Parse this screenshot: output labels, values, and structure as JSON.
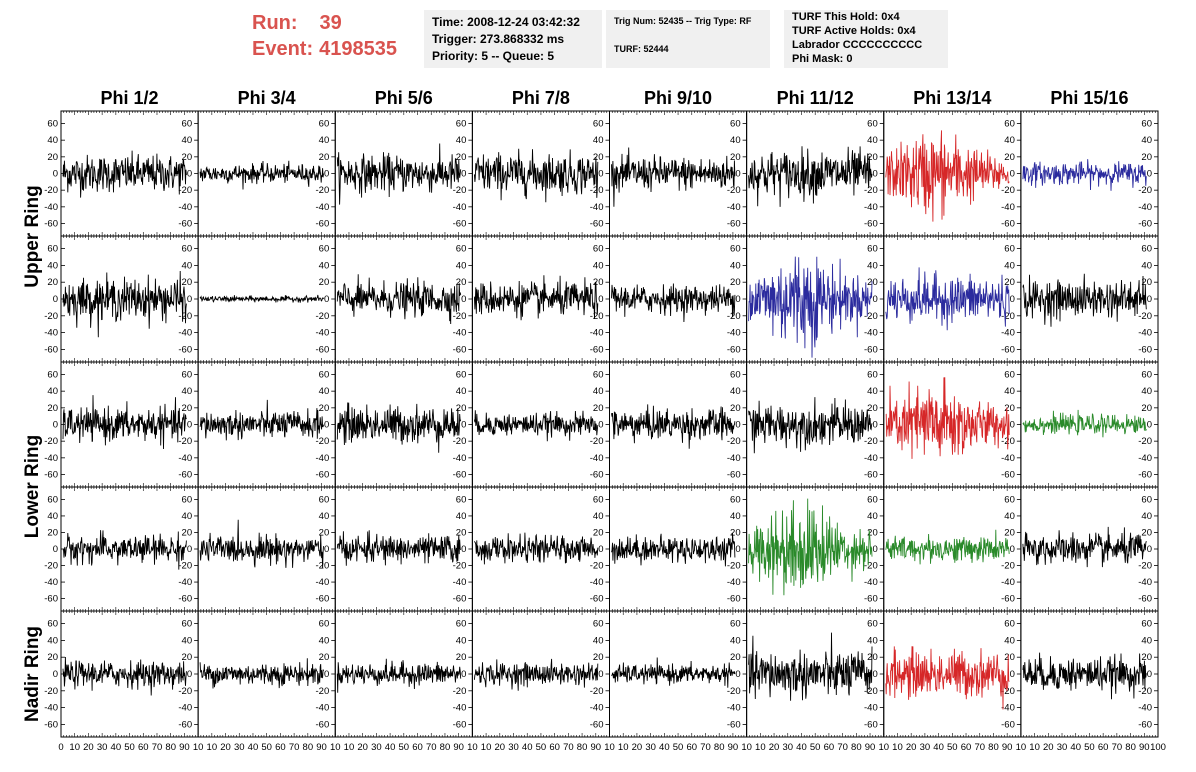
{
  "header": {
    "run_label": "Run:",
    "run_value": "39",
    "event_label": "Event:",
    "event_value": "4198535"
  },
  "info_panel": {
    "time": "Time: 2008-12-24 03:42:32",
    "trigger": "Trigger: 273.868332 ms",
    "priority": "Priority: 5 -- Queue: 5"
  },
  "trig_panel": {
    "trig": "Trig Num: 52435 -- Trig Type: RF",
    "turf": "TURF: 52444"
  },
  "turf_panel": {
    "this_hold": "TURF This Hold: 0x4",
    "active_holds": "TURF Active Holds: 0x4",
    "labrador": "Labrador CCCCCCCCCC",
    "phi_mask": "Phi Mask: 0"
  },
  "colors": {
    "header_red": "#d9534f",
    "black": "#000000",
    "red": "#d62728",
    "blue": "#2b2b9e",
    "green": "#2a8a2a"
  },
  "chart_data": {
    "type": "line",
    "columns": [
      "Phi 1/2",
      "Phi 3/4",
      "Phi 5/6",
      "Phi 7/8",
      "Phi 9/10",
      "Phi 11/12",
      "Phi 13/14",
      "Phi 15/16"
    ],
    "ring_labels": [
      "Upper Ring",
      "Lower Ring",
      "Nadir Ring"
    ],
    "rows": [
      {
        "ring": "Upper Ring",
        "colors": [
          "black",
          "black",
          "black",
          "black",
          "black",
          "black",
          "red",
          "blue"
        ],
        "amps": [
          20,
          10,
          20,
          22,
          18,
          25,
          35,
          12
        ]
      },
      {
        "ring": "Upper Ring",
        "colors": [
          "black",
          "black",
          "black",
          "black",
          "black",
          "blue",
          "blue",
          "black"
        ],
        "amps": [
          22,
          3,
          18,
          18,
          15,
          40,
          25,
          20
        ]
      },
      {
        "ring": "Lower Ring",
        "colors": [
          "black",
          "black",
          "black",
          "black",
          "black",
          "black",
          "red",
          "green"
        ],
        "amps": [
          18,
          15,
          20,
          12,
          17,
          22,
          35,
          10
        ]
      },
      {
        "ring": "Lower Ring",
        "colors": [
          "black",
          "black",
          "black",
          "black",
          "black",
          "green",
          "green",
          "black"
        ],
        "amps": [
          15,
          15,
          15,
          14,
          14,
          38,
          14,
          17
        ]
      },
      {
        "ring": "Nadir Ring",
        "colors": [
          "black",
          "black",
          "black",
          "black",
          "black",
          "black",
          "red",
          "black"
        ],
        "amps": [
          14,
          12,
          12,
          12,
          10,
          25,
          25,
          18
        ]
      }
    ],
    "ylim": [
      -75,
      75
    ],
    "y_ticks": [
      -60,
      -40,
      -20,
      0,
      20,
      40,
      60
    ],
    "y_tick_labels": [
      "-60",
      "-40",
      "-20",
      "0",
      "20",
      "40",
      "60"
    ],
    "xlim": [
      0,
      100
    ],
    "x_ticks": [
      0,
      10,
      20,
      30,
      40,
      50,
      60,
      70,
      80,
      90,
      100
    ],
    "x_tick_labels": [
      "0",
      "10",
      "20",
      "30",
      "40",
      "50",
      "60",
      "70",
      "80",
      "90",
      "100"
    ],
    "first_col_x_labels": [
      "0",
      "10",
      "20",
      "30",
      "40",
      "50",
      "60",
      "70",
      "80",
      "90",
      "10"
    ],
    "middle_col_x_labels": [
      "10",
      "20",
      "30",
      "40",
      "50",
      "60",
      "70",
      "80",
      "90",
      "10"
    ],
    "last_col_x_labels": [
      "10",
      "20",
      "30",
      "40",
      "50",
      "60",
      "70",
      "80",
      "90",
      "100"
    ],
    "grid": false
  }
}
